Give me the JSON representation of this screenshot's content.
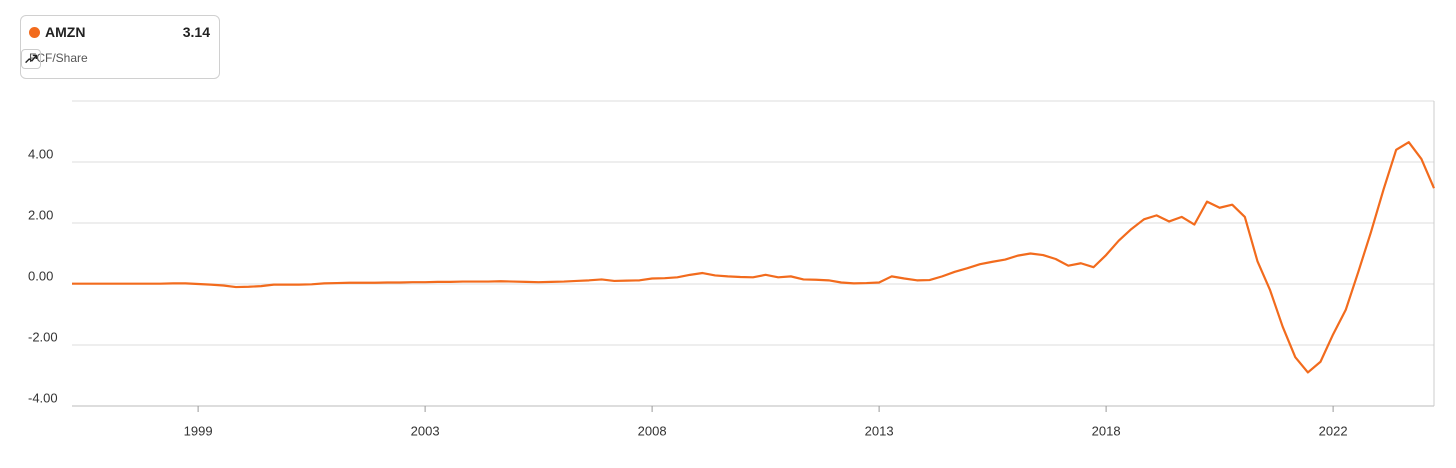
{
  "chart_data": {
    "type": "line",
    "subtitle": "FCF/Share",
    "categories": [
      null,
      null,
      null,
      null,
      null,
      null,
      null,
      null,
      null,
      null,
      "1999",
      null,
      null,
      null,
      null,
      null,
      null,
      null,
      null,
      null,
      null,
      null,
      null,
      null,
      null,
      null,
      null,
      null,
      "2003",
      null,
      null,
      null,
      null,
      null,
      null,
      null,
      null,
      null,
      null,
      null,
      null,
      null,
      null,
      null,
      null,
      null,
      "2008",
      null,
      null,
      null,
      null,
      null,
      null,
      null,
      null,
      null,
      null,
      null,
      null,
      null,
      null,
      null,
      null,
      null,
      "2013",
      null,
      null,
      null,
      null,
      null,
      null,
      null,
      null,
      null,
      null,
      null,
      null,
      null,
      null,
      null,
      null,
      null,
      "2018",
      null,
      null,
      null,
      null,
      null,
      null,
      null,
      null,
      null,
      null,
      null,
      null,
      null,
      null,
      null,
      null,
      null,
      "2022",
      null,
      null,
      null,
      null,
      null,
      null,
      null,
      null
    ],
    "series": [
      {
        "name": "AMZN",
        "color": "#f26b1d",
        "values": [
          0.01,
          0.01,
          0.01,
          0.01,
          0.01,
          0.01,
          0.01,
          0.01,
          0.02,
          0.02,
          0,
          -0.02,
          -0.05,
          -0.1,
          -0.09,
          -0.07,
          -0.02,
          -0.02,
          -0.02,
          -0.01,
          0.02,
          0.03,
          0.04,
          0.04,
          0.04,
          0.05,
          0.05,
          0.06,
          0.06,
          0.07,
          0.07,
          0.08,
          0.08,
          0.08,
          0.09,
          0.08,
          0.07,
          0.06,
          0.07,
          0.08,
          0.1,
          0.12,
          0.15,
          0.1,
          0.11,
          0.12,
          0.18,
          0.19,
          0.22,
          0.3,
          0.36,
          0.28,
          0.25,
          0.23,
          0.22,
          0.3,
          0.22,
          0.25,
          0.15,
          0.14,
          0.12,
          0.05,
          0.02,
          0.03,
          0.05,
          0.25,
          0.18,
          0.12,
          0.13,
          0.25,
          0.4,
          0.52,
          0.65,
          0.73,
          0.8,
          0.93,
          1.0,
          0.95,
          0.82,
          0.6,
          0.68,
          0.55,
          0.95,
          1.42,
          1.8,
          2.12,
          2.25,
          2.05,
          2.2,
          1.95,
          2.7,
          2.5,
          2.6,
          2.2,
          0.75,
          -0.2,
          -1.4,
          -2.4,
          -2.9,
          -2.55,
          -1.65,
          -0.85,
          0.4,
          1.7,
          3.1,
          4.4,
          4.65,
          4.1,
          3.14
        ]
      }
    ],
    "ylim": [
      -4,
      6
    ],
    "yticks": [
      {
        "value": -4,
        "label": "-4.00"
      },
      {
        "value": -2,
        "label": "-2.00"
      },
      {
        "value": 0,
        "label": "0.00"
      },
      {
        "value": 2,
        "label": "2.00"
      },
      {
        "value": 4,
        "label": "4.00"
      }
    ],
    "grid": true
  }
}
